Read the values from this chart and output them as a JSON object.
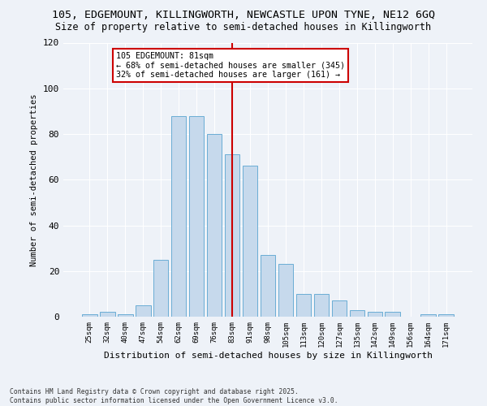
{
  "title1": "105, EDGEMOUNT, KILLINGWORTH, NEWCASTLE UPON TYNE, NE12 6GQ",
  "title2": "Size of property relative to semi-detached houses in Killingworth",
  "xlabel": "Distribution of semi-detached houses by size in Killingworth",
  "ylabel": "Number of semi-detached properties",
  "categories": [
    "25sqm",
    "32sqm",
    "40sqm",
    "47sqm",
    "54sqm",
    "62sqm",
    "69sqm",
    "76sqm",
    "83sqm",
    "91sqm",
    "98sqm",
    "105sqm",
    "113sqm",
    "120sqm",
    "127sqm",
    "135sqm",
    "142sqm",
    "149sqm",
    "156sqm",
    "164sqm",
    "171sqm"
  ],
  "values": [
    1,
    2,
    1,
    5,
    25,
    88,
    88,
    80,
    71,
    66,
    27,
    23,
    10,
    10,
    7,
    3,
    2,
    2,
    0,
    1,
    1
  ],
  "bar_color": "#c6d9ec",
  "bar_edge_color": "#6aadd5",
  "vline_x": 8,
  "vline_color": "#cc0000",
  "annotation_text": "105 EDGEMOUNT: 81sqm\n← 68% of semi-detached houses are smaller (345)\n32% of semi-detached houses are larger (161) →",
  "annotation_box_color": "#ffffff",
  "annotation_box_edge": "#cc0000",
  "ylim": [
    0,
    120
  ],
  "yticks": [
    0,
    20,
    40,
    60,
    80,
    100,
    120
  ],
  "title1_fontsize": 9.5,
  "title2_fontsize": 8.5,
  "footnote": "Contains HM Land Registry data © Crown copyright and database right 2025.\nContains public sector information licensed under the Open Government Licence v3.0.",
  "bg_color": "#eef2f8"
}
